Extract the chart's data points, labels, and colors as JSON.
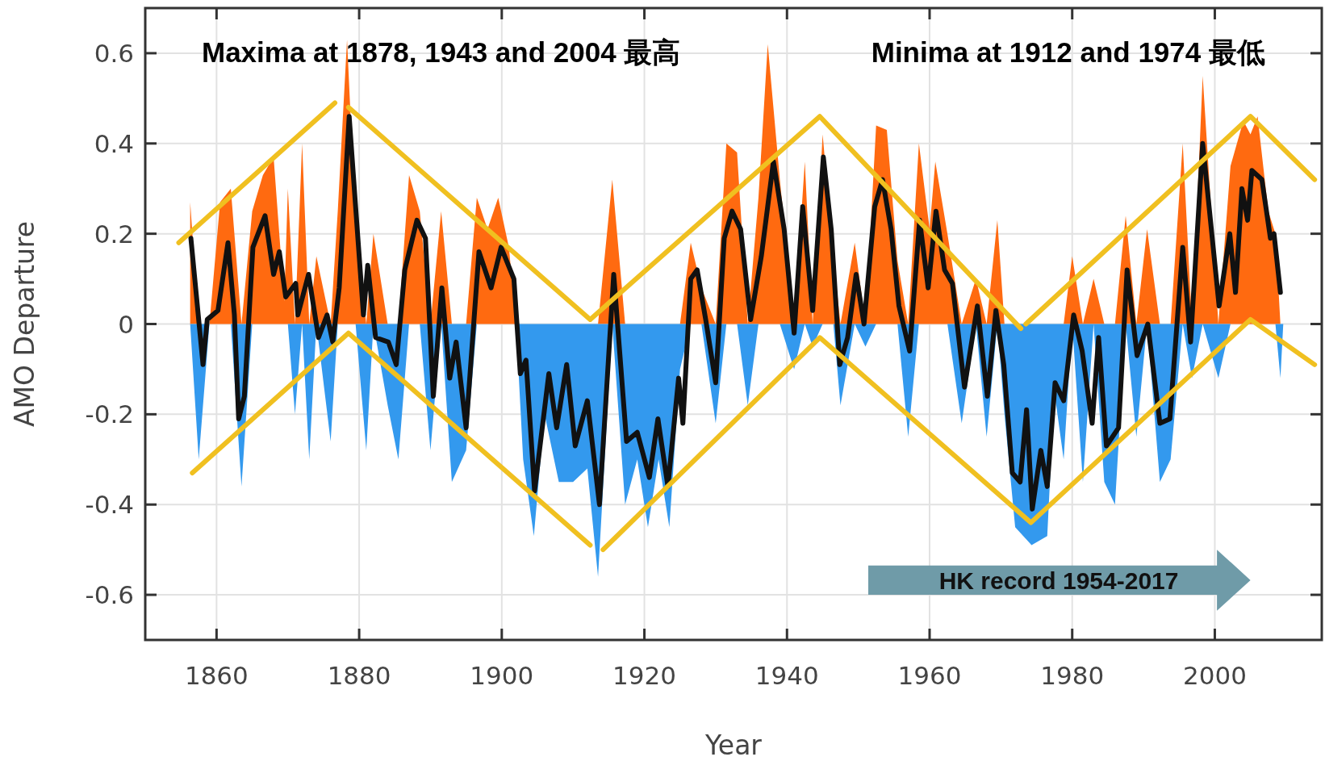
{
  "chart_data": {
    "type": "line",
    "xlabel": "Year",
    "ylabel": "AMO Departure",
    "xlim": [
      1850,
      2015
    ],
    "xticks": [
      1860,
      1880,
      1900,
      1920,
      1940,
      1960,
      1980,
      2000
    ],
    "ylim": [
      -0.7,
      0.7
    ],
    "yticks": [
      -0.6,
      -0.4,
      -0.2,
      0,
      0.2,
      0.4,
      0.6
    ],
    "grid": true,
    "annotations": [
      "Maxima at 1878, 1943 and 2004 最高",
      "Minima at 1912 and 1974 最低",
      "HK record 1954-2017"
    ],
    "series": [
      {
        "type": "area",
        "color": "#ff6a10",
        "x": [
          1856.3,
          1857.5,
          1859,
          1860.5,
          1862,
          1863.5,
          1865,
          1866.5,
          1868,
          1869.5,
          1870,
          1871,
          1872,
          1873,
          1874,
          1876,
          1877,
          1878.3,
          1879.5,
          1881,
          1882,
          1884,
          1885.5,
          1887,
          1888.5,
          1890,
          1891.5,
          1893,
          1895,
          1896.5,
          1898,
          1899.5,
          1901,
          1902,
          1903,
          1904.5,
          1906,
          1908,
          1910,
          1912,
          1913.5,
          1915.5,
          1917.3,
          1919,
          1920.5,
          1922,
          1923.5,
          1925,
          1926.5,
          1928,
          1930,
          1931.5,
          1933,
          1934.5,
          1936,
          1937.3,
          1939,
          1941,
          1942.5,
          1943.6,
          1945,
          1946.5,
          1947.5,
          1949.5,
          1951,
          1952.5,
          1954,
          1955.5,
          1957,
          1958.5,
          1960,
          1960.8,
          1962.5,
          1964.5,
          1966.5,
          1968,
          1969.5,
          1970.5,
          1972,
          1974.3,
          1976.5,
          1977.5,
          1978.8,
          1980,
          1981.5,
          1983,
          1984.5,
          1986,
          1987.5,
          1989,
          1990.5,
          1992.3,
          1993.8,
          1995.5,
          1996.8,
          1998.3,
          2000.5,
          2002.2,
          2004,
          2005,
          2006,
          2007.5,
          2008.5,
          2009.2,
          2009.6
        ],
        "values": [
          0.27,
          0,
          0,
          0.27,
          0.3,
          0,
          0.25,
          0.33,
          0.37,
          0.05,
          0.3,
          0,
          0.4,
          0,
          0.15,
          0,
          0.25,
          0.63,
          0.22,
          0,
          0.2,
          0,
          0,
          0.33,
          0.25,
          0,
          0.25,
          0,
          0,
          0.28,
          0.21,
          0.28,
          0.17,
          0,
          0,
          0,
          0,
          0,
          0,
          0,
          0,
          0.32,
          0,
          0,
          0,
          0,
          0,
          0,
          0.18,
          0.08,
          0,
          0.4,
          0.38,
          0,
          0.28,
          0.62,
          0.32,
          0,
          0.36,
          0,
          0.42,
          0.15,
          0,
          0.18,
          0,
          0.44,
          0.43,
          0.14,
          0,
          0.4,
          0.21,
          0.36,
          0.2,
          0,
          0.1,
          0,
          0.23,
          0,
          0,
          0,
          0,
          0,
          0,
          0.15,
          0,
          0.1,
          0,
          0,
          0.24,
          0,
          0.21,
          0,
          0,
          0.4,
          0,
          0.55,
          0,
          0.35,
          0.45,
          0.42,
          0.46,
          0.25,
          0.2,
          0,
          0
        ]
      },
      {
        "type": "area",
        "color": "#3399ee",
        "x": [
          1856.3,
          1857.5,
          1859,
          1860.5,
          1862,
          1863.5,
          1865,
          1866.5,
          1868,
          1869.5,
          1870,
          1871,
          1872,
          1873,
          1874,
          1876,
          1877,
          1878.3,
          1879.5,
          1881,
          1882,
          1884,
          1885.5,
          1887,
          1888.5,
          1890,
          1891.5,
          1893,
          1895,
          1896.5,
          1898,
          1899.5,
          1901,
          1902,
          1903,
          1904.5,
          1906,
          1908,
          1910,
          1912,
          1913.5,
          1915.5,
          1917.3,
          1919,
          1920.5,
          1922,
          1923.5,
          1925,
          1926.5,
          1928,
          1930,
          1931.5,
          1933,
          1934.5,
          1936,
          1937.3,
          1939,
          1941,
          1942.5,
          1943.6,
          1945,
          1946.5,
          1947.5,
          1949.5,
          1951,
          1952.5,
          1954,
          1955.5,
          1957,
          1958.5,
          1960,
          1960.8,
          1962.5,
          1964.5,
          1966.5,
          1968,
          1969.5,
          1970.5,
          1972,
          1974.3,
          1976.5,
          1977.5,
          1978.8,
          1980,
          1981.5,
          1983,
          1984.5,
          1986,
          1987.5,
          1989,
          1990.5,
          1992.3,
          1993.8,
          1995.5,
          1996.8,
          1998.3,
          2000.5,
          2002.2,
          2004,
          2005,
          2006,
          2007.5,
          2008.5,
          2009.2,
          2009.6
        ],
        "values": [
          0,
          -0.3,
          0,
          0,
          0,
          -0.36,
          0,
          0,
          0,
          0,
          0,
          -0.2,
          0,
          -0.3,
          0,
          -0.26,
          0,
          0,
          0,
          -0.28,
          0,
          -0.18,
          -0.3,
          0,
          0,
          -0.28,
          0,
          -0.35,
          -0.28,
          0,
          0,
          0,
          0,
          0,
          -0.3,
          -0.47,
          -0.2,
          -0.35,
          -0.35,
          -0.32,
          -0.56,
          0,
          -0.4,
          -0.3,
          -0.45,
          -0.3,
          -0.45,
          -0.1,
          0,
          0,
          -0.22,
          0,
          0,
          -0.18,
          0,
          0,
          0,
          -0.1,
          0,
          -0.05,
          0,
          0,
          -0.18,
          0,
          -0.05,
          0,
          0,
          0,
          -0.25,
          0,
          0,
          0,
          0,
          -0.22,
          0,
          -0.25,
          0,
          -0.2,
          -0.45,
          -0.49,
          -0.47,
          -0.15,
          -0.3,
          0,
          -0.35,
          0,
          -0.35,
          -0.4,
          0,
          -0.25,
          0,
          -0.35,
          -0.3,
          0,
          -0.12,
          0,
          -0.12,
          0,
          0,
          0,
          0,
          0,
          0,
          -0.12,
          0
        ]
      },
      {
        "color": "#111111",
        "x": [
          1856.4,
          1858.1,
          1858.7,
          1860.2,
          1861.6,
          1862.5,
          1863.1,
          1863.9,
          1865.1,
          1866.8,
          1868.0,
          1868.8,
          1869.7,
          1871.1,
          1871.4,
          1872.9,
          1874.3,
          1875.5,
          1876.3,
          1877.2,
          1878.6,
          1879.5,
          1880.6,
          1881.2,
          1882.3,
          1884.1,
          1885.2,
          1886.4,
          1888.1,
          1889.3,
          1890.4,
          1891.6,
          1892.7,
          1893.6,
          1895.0,
          1896.8,
          1898.5,
          1899.9,
          1901.7,
          1902.6,
          1903.4,
          1904.6,
          1906.6,
          1907.7,
          1909.1,
          1910.3,
          1912.0,
          1913.7,
          1915.7,
          1917.5,
          1919.0,
          1920.7,
          1921.9,
          1923.3,
          1924.8,
          1925.4,
          1926.5,
          1927.4,
          1928.6,
          1930.0,
          1931.2,
          1932.3,
          1933.5,
          1934.9,
          1936.4,
          1938.1,
          1939.6,
          1941.0,
          1942.2,
          1943.6,
          1945.1,
          1946.2,
          1947.4,
          1948.5,
          1949.7,
          1950.8,
          1952.3,
          1953.4,
          1954.6,
          1955.7,
          1957.2,
          1958.6,
          1959.8,
          1960.9,
          1962.1,
          1963.2,
          1964.9,
          1966.7,
          1968.1,
          1969.3,
          1970.4,
          1971.6,
          1972.7,
          1973.6,
          1974.4,
          1975.6,
          1976.5,
          1977.6,
          1978.8,
          1980.2,
          1981.4,
          1982.8,
          1983.7,
          1984.8,
          1986.5,
          1987.7,
          1989.1,
          1990.6,
          1992.3,
          1993.7,
          1995.5,
          1996.6,
          1998.3,
          2000.6,
          2002.1,
          2002.9,
          2003.8,
          2004.6,
          2005.2,
          2006.6,
          2007.8,
          2008.3,
          2009.2
        ],
        "values": [
          0.19,
          -0.09,
          0.01,
          0.03,
          0.18,
          0.02,
          -0.21,
          -0.16,
          0.17,
          0.24,
          0.11,
          0.16,
          0.06,
          0.09,
          0.02,
          0.11,
          -0.03,
          0.02,
          -0.04,
          0.08,
          0.46,
          0.26,
          0.02,
          0.13,
          -0.03,
          -0.04,
          -0.09,
          0.12,
          0.23,
          0.19,
          -0.16,
          0.08,
          -0.12,
          -0.04,
          -0.23,
          0.16,
          0.08,
          0.17,
          0.1,
          -0.11,
          -0.08,
          -0.37,
          -0.11,
          -0.23,
          -0.09,
          -0.27,
          -0.17,
          -0.4,
          0.11,
          -0.26,
          -0.24,
          -0.34,
          -0.21,
          -0.36,
          -0.12,
          -0.22,
          0.1,
          0.12,
          0.01,
          -0.13,
          0.19,
          0.25,
          0.21,
          0.01,
          0.15,
          0.36,
          0.21,
          -0.02,
          0.26,
          0.03,
          0.37,
          0.21,
          -0.09,
          -0.03,
          0.11,
          0.0,
          0.26,
          0.32,
          0.21,
          0.04,
          -0.06,
          0.23,
          0.08,
          0.25,
          0.12,
          0.09,
          -0.14,
          0.04,
          -0.16,
          0.03,
          -0.09,
          -0.33,
          -0.35,
          -0.19,
          -0.41,
          -0.28,
          -0.36,
          -0.13,
          -0.17,
          0.02,
          -0.06,
          -0.22,
          -0.03,
          -0.27,
          -0.23,
          0.12,
          -0.07,
          0.0,
          -0.22,
          -0.21,
          0.17,
          -0.04,
          0.4,
          0.04,
          0.2,
          0.07,
          0.3,
          0.23,
          0.34,
          0.32,
          0.19,
          0.2,
          0.07
        ]
      },
      {
        "type": "line",
        "color": "#f0c020",
        "x": [
          1854.7,
          1876.6
        ],
        "values": [
          0.18,
          0.49
        ]
      },
      {
        "type": "line",
        "color": "#f0c020",
        "x": [
          1878.5,
          1912.4,
          1944.6,
          1972.8
        ],
        "values": [
          0.48,
          0.01,
          0.46,
          -0.01
        ]
      },
      {
        "type": "line",
        "color": "#f0c020",
        "x": [
          1973.5,
          2005,
          2014
        ],
        "values": [
          0.0,
          0.46,
          0.32
        ]
      },
      {
        "type": "line",
        "color": "#f0c020",
        "x": [
          1856.6,
          1878.5,
          1912.4
        ],
        "values": [
          -0.33,
          -0.02,
          -0.49
        ]
      },
      {
        "type": "line",
        "color": "#f0c020",
        "x": [
          1914.2,
          1944.6,
          1974.2,
          2005,
          2014
        ],
        "values": [
          -0.5,
          -0.03,
          -0.44,
          0.01,
          -0.09
        ]
      }
    ]
  }
}
